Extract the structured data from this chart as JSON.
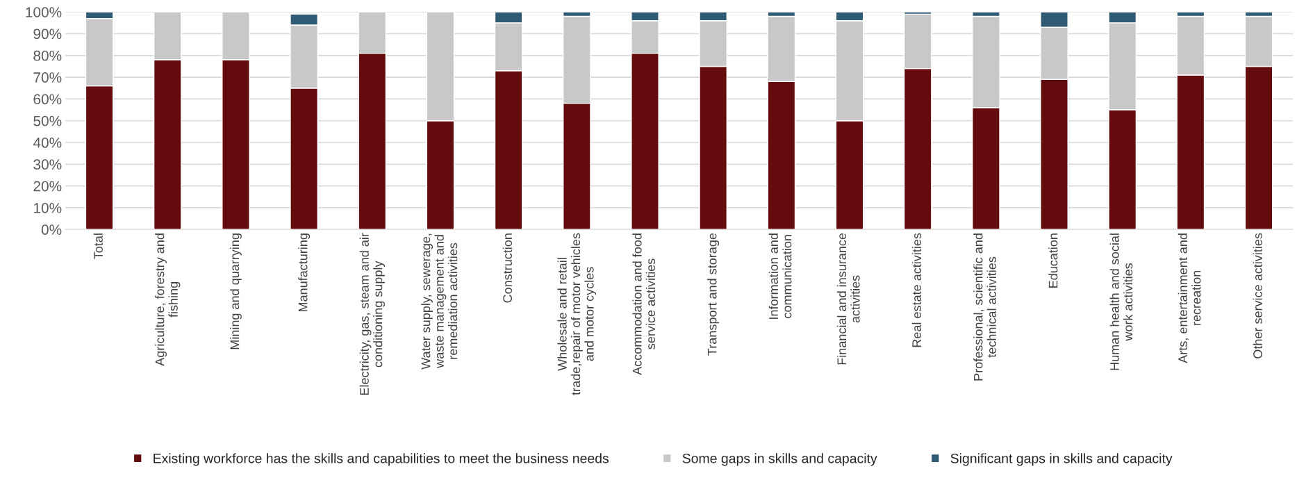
{
  "chart_data": {
    "type": "bar",
    "stacked": true,
    "categories": [
      "Total",
      "Agriculture, forestry and fishing",
      "Mining and quarrying",
      "Manufacturing",
      "Electricity, gas, steam and air conditioning supply",
      "Water supply, sewerage, waste management and remediation activities",
      "Construction",
      "Wholesale and retail trade,repair of motor vehicles and motor cycles",
      "Accommodation and food service activities",
      "Transport and storage",
      "Information and communication",
      "Financial and insurance activities",
      "Real estate activities",
      "Professional, scientific and technical activities",
      "Education",
      "Human health and social work activities",
      "Arts, entertainment and recreation",
      "Other service activities"
    ],
    "series": [
      {
        "name": "Existing workforce has the skills and capabilities to meet the business needs",
        "color": "#640b0d",
        "values": [
          66,
          78,
          78,
          65,
          81,
          50,
          73,
          58,
          81,
          75,
          68,
          50,
          74,
          56,
          69,
          55,
          71,
          75
        ]
      },
      {
        "name": "Some gaps in skills and capacity",
        "color": "#c8c8c8",
        "values": [
          31,
          22,
          22,
          29,
          19,
          50,
          22,
          40,
          15,
          21,
          30,
          46,
          25,
          42,
          24,
          40,
          27,
          23
        ]
      },
      {
        "name": "Significant gaps in skills and capacity",
        "color": "#2e5a73",
        "values": [
          3,
          0,
          0,
          5,
          0,
          0,
          5,
          2,
          4,
          4,
          2,
          4,
          1,
          2,
          7,
          5,
          2,
          2
        ]
      }
    ],
    "ylim": [
      0,
      100
    ],
    "yticks": [
      {
        "value": 0,
        "label": "0%"
      },
      {
        "value": 10,
        "label": "10%"
      },
      {
        "value": 20,
        "label": "20%"
      },
      {
        "value": 30,
        "label": "30%"
      },
      {
        "value": 40,
        "label": "40%"
      },
      {
        "value": 50,
        "label": "50%"
      },
      {
        "value": 60,
        "label": "60%"
      },
      {
        "value": 70,
        "label": "70%"
      },
      {
        "value": 80,
        "label": "80%"
      },
      {
        "value": 90,
        "label": "90%"
      },
      {
        "value": 100,
        "label": "100%"
      }
    ],
    "grid": "y",
    "legend": "bottom"
  }
}
